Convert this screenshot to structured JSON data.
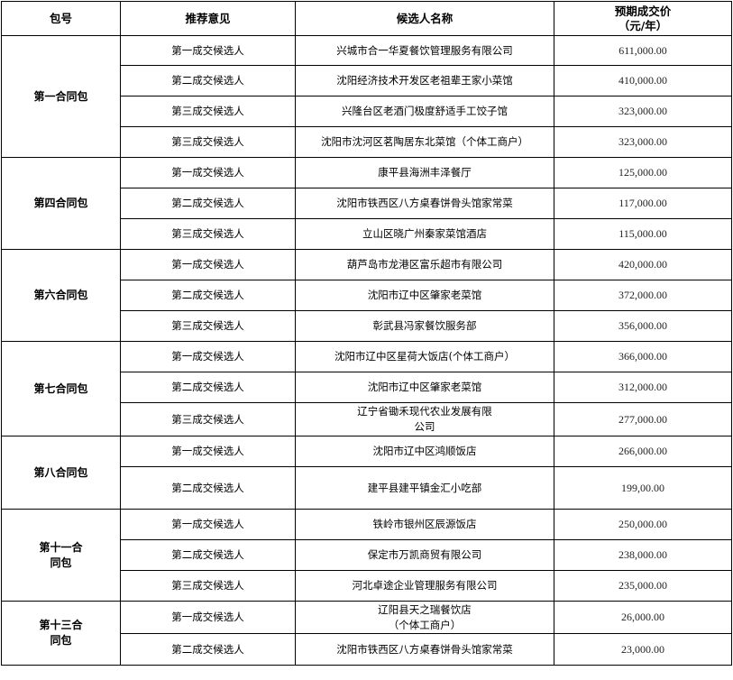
{
  "table": {
    "headers": [
      "包号",
      "推荐意见",
      "候选人名称",
      "预期成交价\n（元/年）"
    ],
    "groups": [
      {
        "package": "第一合同包",
        "rows": [
          {
            "recommendation": "第一成交候选人",
            "candidate": "兴城市合一华夏餐饮管理服务有限公司",
            "price": "611,000.00"
          },
          {
            "recommendation": "第二成交候选人",
            "candidate": "沈阳经济技术开发区老祖辈王家小菜馆",
            "price": "410,000.00"
          },
          {
            "recommendation": "第三成交候选人",
            "candidate": "兴隆台区老酒门极度舒适手工饺子馆",
            "price": "323,000.00"
          },
          {
            "recommendation": "第三成交候选人",
            "candidate": "沈阳市沈河区茗陶居东北菜馆（个体工商户）",
            "price": "323,000.00"
          }
        ]
      },
      {
        "package": "第四合同包",
        "rows": [
          {
            "recommendation": "第一成交候选人",
            "candidate": "康平县海洲丰泽餐厅",
            "price": "125,000.00"
          },
          {
            "recommendation": "第二成交候选人",
            "candidate": "沈阳市铁西区八方桌春饼骨头馆家常菜",
            "price": "117,000.00"
          },
          {
            "recommendation": "第三成交候选人",
            "candidate": "立山区晓广州秦家菜馆酒店",
            "price": "115,000.00"
          }
        ]
      },
      {
        "package": "第六合同包",
        "rows": [
          {
            "recommendation": "第一成交候选人",
            "candidate": "葫芦岛市龙港区富乐超市有限公司",
            "price": "420,000.00"
          },
          {
            "recommendation": "第二成交候选人",
            "candidate": "沈阳市辽中区肇家老菜馆",
            "price": "372,000.00"
          },
          {
            "recommendation": "第三成交候选人",
            "candidate": "彰武县冯家餐饮服务部",
            "price": "356,000.00"
          }
        ]
      },
      {
        "package": "第七合同包",
        "rows": [
          {
            "recommendation": "第一成交候选人",
            "candidate": "沈阳市辽中区星荷大饭店(个体工商户）",
            "price": "366,000.00"
          },
          {
            "recommendation": "第二成交候选人",
            "candidate": "沈阳市辽中区肇家老菜馆",
            "price": "312,000.00"
          },
          {
            "recommendation": "第三成交候选人",
            "candidate": "辽宁省锄禾现代农业发展有限\n公司",
            "price": "277,000.00"
          }
        ]
      },
      {
        "package": "第八合同包",
        "rows": [
          {
            "recommendation": "第一成交候选人",
            "candidate": "沈阳市辽中区鸿顺饭店",
            "price": "266,000.00"
          },
          {
            "recommendation": "第二成交候选人",
            "candidate": "建平县建平镇金汇小吃部",
            "price": "199,00.00"
          }
        ]
      },
      {
        "package": "第十一合\n同包",
        "rows": [
          {
            "recommendation": "第一成交候选人",
            "candidate": "铁岭市银州区辰源饭店",
            "price": "250,000.00"
          },
          {
            "recommendation": "第二成交候选人",
            "candidate": "保定市万凯商贸有限公司",
            "price": "238,000.00"
          },
          {
            "recommendation": "第三成交候选人",
            "candidate": "河北卓途企业管理服务有限公司",
            "price": "235,000.00"
          }
        ]
      },
      {
        "package": "第十三合\n同包",
        "rows": [
          {
            "recommendation": "第一成交候选人",
            "candidate": "辽阳县天之瑞餐饮店\n（个体工商户）",
            "price": "26,000.00"
          },
          {
            "recommendation": "第二成交候选人",
            "candidate": "沈阳市铁西区八方桌春饼骨头馆家常菜",
            "price": "23,000.00"
          }
        ]
      }
    ]
  }
}
